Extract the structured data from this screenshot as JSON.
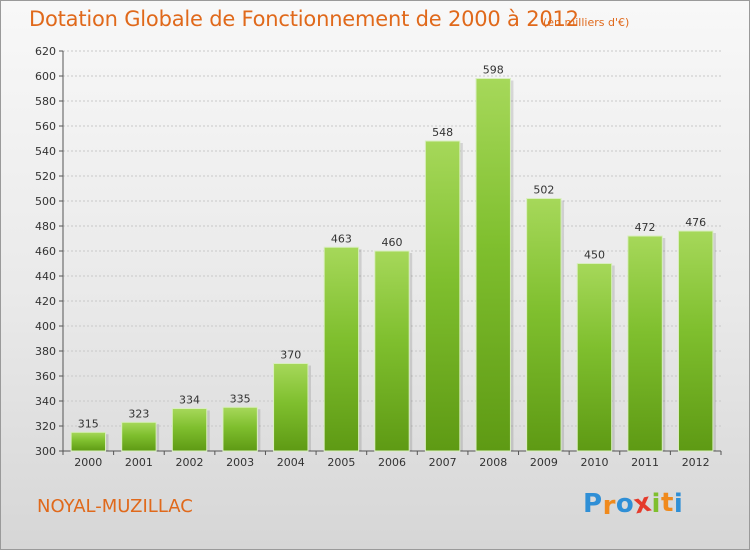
{
  "chart_data": {
    "type": "bar",
    "title": "Dotation Globale de Fonctionnement de 2000 à 2012",
    "subtitle": "(en milliers d'€)",
    "categories": [
      "2000",
      "2001",
      "2002",
      "2003",
      "2004",
      "2005",
      "2006",
      "2007",
      "2008",
      "2009",
      "2010",
      "2011",
      "2012"
    ],
    "values": [
      315,
      323,
      334,
      335,
      370,
      463,
      460,
      548,
      598,
      502,
      450,
      472,
      476
    ],
    "ylim": [
      300,
      620
    ],
    "yticks": [
      300,
      320,
      340,
      360,
      380,
      400,
      420,
      440,
      460,
      480,
      500,
      520,
      540,
      560,
      580,
      600,
      620
    ],
    "grid": true,
    "bar_color": "#7fbf2e",
    "bar_color_dark": "#5e9a14",
    "bar_color_light": "#a6d85a"
  },
  "footer": {
    "commune": "NOYAL-MUZILLAC",
    "logo_letters": [
      {
        "ch": "P",
        "color": "#2f8fd6"
      },
      {
        "ch": "r",
        "color": "#f08a1c"
      },
      {
        "ch": "o",
        "color": "#2f8fd6"
      },
      {
        "ch": "x",
        "color": "#e53b2c"
      },
      {
        "ch": "i",
        "color": "#7fbf2e"
      },
      {
        "ch": "t",
        "color": "#f08a1c"
      },
      {
        "ch": "i",
        "color": "#2f8fd6"
      }
    ]
  }
}
